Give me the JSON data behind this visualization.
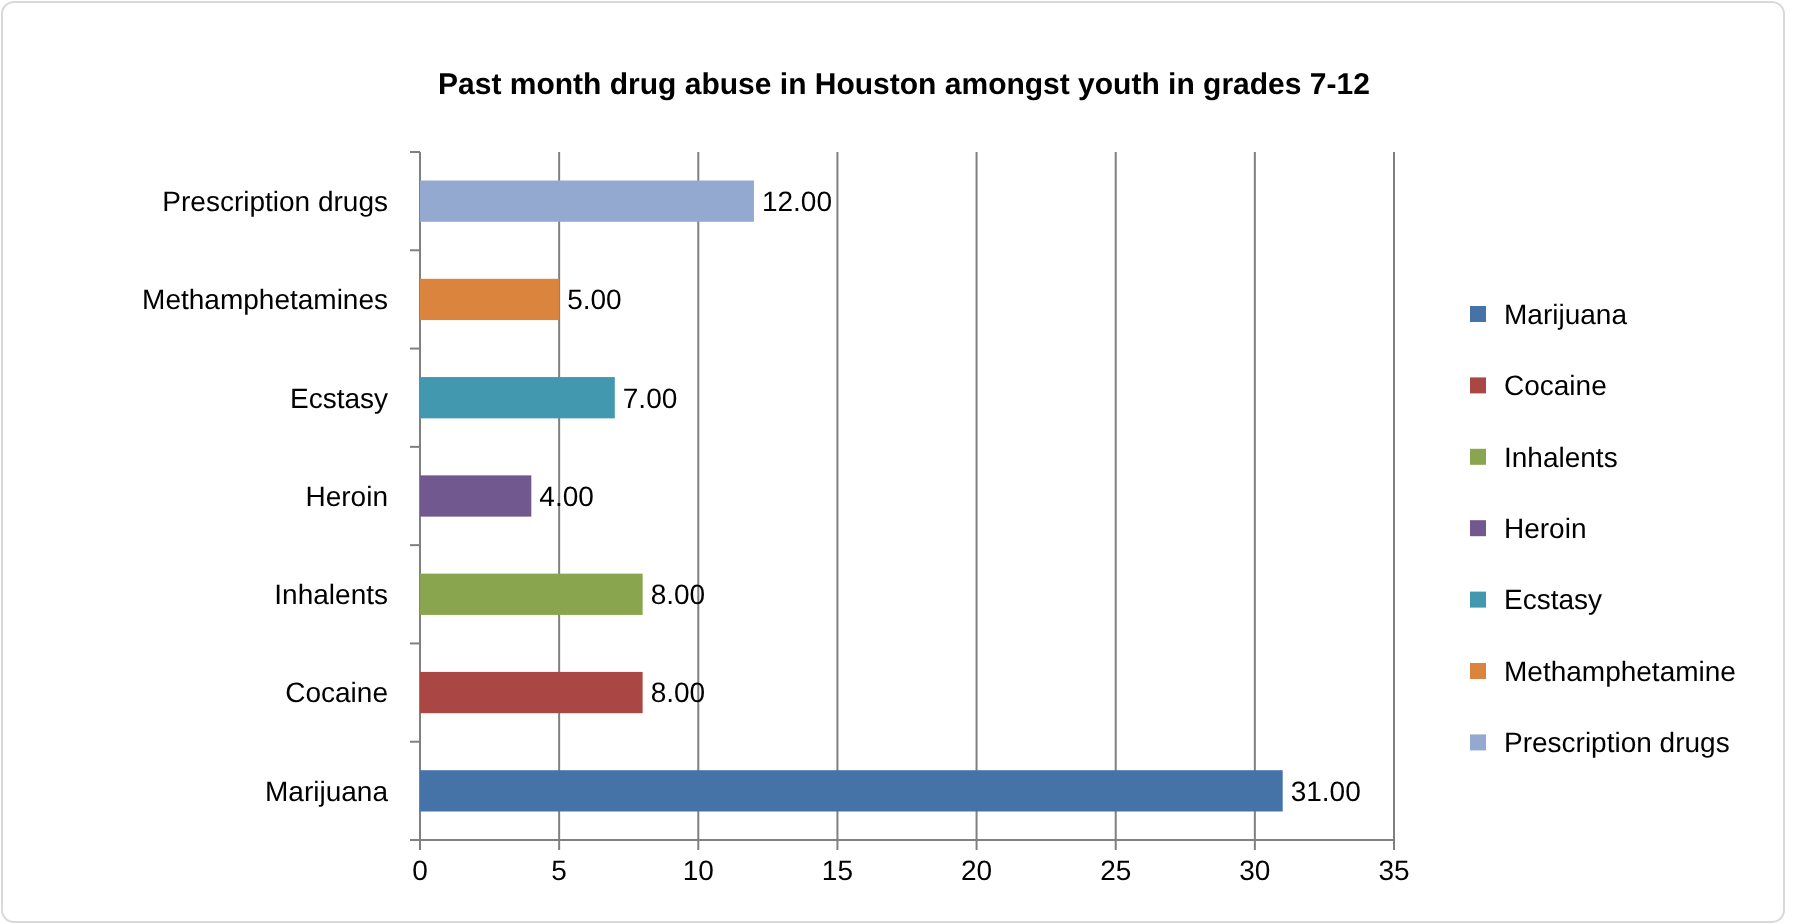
{
  "chart_data": {
    "type": "bar",
    "orientation": "horizontal",
    "title": "Past month drug abuse in Houston amongst youth in grades 7-12",
    "categories": [
      "Prescription drugs",
      "Methamphetamines",
      "Ecstasy",
      "Heroin",
      "Inhalents",
      "Cocaine",
      "Marijuana"
    ],
    "series": [
      {
        "name": "Marijuana",
        "color": "#4572a7",
        "values": [
          null,
          null,
          null,
          null,
          null,
          null,
          31
        ],
        "value_labels": [
          null,
          null,
          null,
          null,
          null,
          null,
          "31.00"
        ]
      },
      {
        "name": "Cocaine",
        "color": "#aa4643",
        "values": [
          null,
          null,
          null,
          null,
          null,
          8,
          null
        ],
        "value_labels": [
          null,
          null,
          null,
          null,
          null,
          "8.00",
          null
        ]
      },
      {
        "name": "Inhalents",
        "color": "#89a54e",
        "values": [
          null,
          null,
          null,
          null,
          8,
          null,
          null
        ],
        "value_labels": [
          null,
          null,
          null,
          null,
          "8.00",
          null,
          null
        ]
      },
      {
        "name": "Heroin",
        "color": "#71588f",
        "values": [
          null,
          null,
          null,
          4,
          null,
          null,
          null
        ],
        "value_labels": [
          null,
          null,
          null,
          "4.00",
          null,
          null,
          null
        ]
      },
      {
        "name": "Ecstasy",
        "color": "#4198af",
        "values": [
          null,
          null,
          7,
          null,
          null,
          null,
          null
        ],
        "value_labels": [
          null,
          null,
          "7.00",
          null,
          null,
          null,
          null
        ]
      },
      {
        "name": "Methamphetamine",
        "color": "#db843d",
        "values": [
          null,
          5,
          null,
          null,
          null,
          null,
          null
        ],
        "value_labels": [
          null,
          "5.00",
          null,
          null,
          null,
          null,
          null
        ]
      },
      {
        "name": "Prescription drugs",
        "color": "#93a9cf",
        "values": [
          12,
          null,
          null,
          null,
          null,
          null,
          null
        ],
        "value_labels": [
          "12.00",
          null,
          null,
          null,
          null,
          null,
          null
        ]
      }
    ],
    "xlim": [
      0,
      35
    ],
    "xticks": [
      0,
      5,
      10,
      15,
      20,
      25,
      30,
      35
    ],
    "grid": "x",
    "legend": "right"
  }
}
